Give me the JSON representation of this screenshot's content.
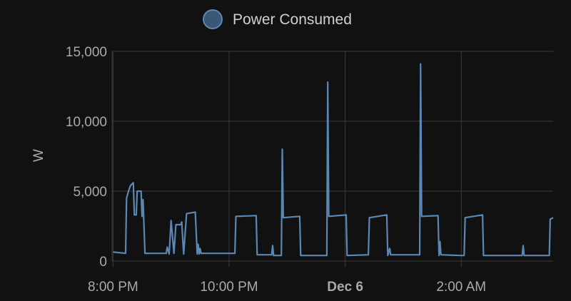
{
  "chart_data": {
    "type": "line",
    "title": "",
    "ylabel": "W",
    "xlabel": "",
    "ylim": [
      0,
      15000
    ],
    "y_ticks": [
      {
        "value": 0,
        "label": "0"
      },
      {
        "value": 5000,
        "label": "5,000"
      },
      {
        "value": 10000,
        "label": "10,000"
      },
      {
        "value": 15000,
        "label": "15,000"
      }
    ],
    "xlim": [
      "2023-12-05 19:59",
      "2023-12-06 03:35"
    ],
    "x_ticks": [
      {
        "value": "2023-12-05 20:00",
        "label": "8:00 PM",
        "bold": false
      },
      {
        "value": "2023-12-05 22:00",
        "label": "10:00 PM",
        "bold": false
      },
      {
        "value": "2023-12-06 00:00",
        "label": "Dec 6",
        "bold": true
      },
      {
        "value": "2023-12-06 02:00",
        "label": "2:00 AM",
        "bold": false
      }
    ],
    "grid": true,
    "legend_position": "top-center",
    "series": [
      {
        "name": "Power Consumed",
        "color": "#5b87b4",
        "fill": "#3b5778",
        "points": [
          [
            "2023-12-05 20:00",
            650
          ],
          [
            "2023-12-05 20:13",
            550
          ],
          [
            "2023-12-05 20:14",
            4500
          ],
          [
            "2023-12-05 20:16",
            5000
          ],
          [
            "2023-12-05 20:18",
            5400
          ],
          [
            "2023-12-05 20:21",
            5600
          ],
          [
            "2023-12-05 20:22",
            3300
          ],
          [
            "2023-12-05 20:24",
            3300
          ],
          [
            "2023-12-05 20:25",
            5000
          ],
          [
            "2023-12-05 20:29",
            5000
          ],
          [
            "2023-12-05 20:30",
            3200
          ],
          [
            "2023-12-05 20:31",
            4400
          ],
          [
            "2023-12-05 20:33",
            550
          ],
          [
            "2023-12-05 20:55",
            550
          ],
          [
            "2023-12-05 20:56",
            1000
          ],
          [
            "2023-12-05 20:58",
            500
          ],
          [
            "2023-12-05 21:00",
            2900
          ],
          [
            "2023-12-05 21:03",
            550
          ],
          [
            "2023-12-05 21:05",
            2600
          ],
          [
            "2023-12-05 21:10",
            2600
          ],
          [
            "2023-12-05 21:11",
            2800
          ],
          [
            "2023-12-05 21:13",
            500
          ],
          [
            "2023-12-05 21:16",
            3400
          ],
          [
            "2023-12-05 21:25",
            3500
          ],
          [
            "2023-12-05 21:27",
            500
          ],
          [
            "2023-12-05 21:28",
            1200
          ],
          [
            "2023-12-05 21:29",
            500
          ],
          [
            "2023-12-05 21:30",
            900
          ],
          [
            "2023-12-05 21:31",
            550
          ],
          [
            "2023-12-05 21:59",
            550
          ],
          [
            "2023-12-05 22:06",
            550
          ],
          [
            "2023-12-05 22:07",
            3200
          ],
          [
            "2023-12-05 22:28",
            3250
          ],
          [
            "2023-12-05 22:29",
            450
          ],
          [
            "2023-12-05 22:44",
            450
          ],
          [
            "2023-12-05 22:45",
            1100
          ],
          [
            "2023-12-05 22:46",
            400
          ],
          [
            "2023-12-05 22:54",
            400
          ],
          [
            "2023-12-05 22:55",
            8000
          ],
          [
            "2023-12-05 22:56",
            3100
          ],
          [
            "2023-12-05 23:13",
            3200
          ],
          [
            "2023-12-05 23:14",
            400
          ],
          [
            "2023-12-05 23:41",
            400
          ],
          [
            "2023-12-05 23:42",
            12800
          ],
          [
            "2023-12-05 23:43",
            3200
          ],
          [
            "2023-12-06 00:01",
            3300
          ],
          [
            "2023-12-06 00:02",
            400
          ],
          [
            "2023-12-06 00:24",
            450
          ],
          [
            "2023-12-06 00:25",
            3100
          ],
          [
            "2023-12-06 00:43",
            3300
          ],
          [
            "2023-12-06 00:44",
            400
          ],
          [
            "2023-12-06 00:46",
            900
          ],
          [
            "2023-12-06 00:47",
            450
          ],
          [
            "2023-12-06 01:17",
            450
          ],
          [
            "2023-12-06 01:18",
            14100
          ],
          [
            "2023-12-06 01:19",
            3200
          ],
          [
            "2023-12-06 01:36",
            3250
          ],
          [
            "2023-12-06 01:37",
            400
          ],
          [
            "2023-12-06 01:38",
            1400
          ],
          [
            "2023-12-06 01:39",
            450
          ],
          [
            "2023-12-06 02:00",
            400
          ],
          [
            "2023-12-06 02:03",
            400
          ],
          [
            "2023-12-06 02:04",
            3100
          ],
          [
            "2023-12-06 02:22",
            3300
          ],
          [
            "2023-12-06 02:23",
            400
          ],
          [
            "2023-12-06 03:03",
            400
          ],
          [
            "2023-12-06 03:04",
            1100
          ],
          [
            "2023-12-06 03:05",
            400
          ],
          [
            "2023-12-06 03:31",
            400
          ],
          [
            "2023-12-06 03:32",
            3000
          ],
          [
            "2023-12-06 03:35",
            3100
          ]
        ]
      }
    ]
  }
}
